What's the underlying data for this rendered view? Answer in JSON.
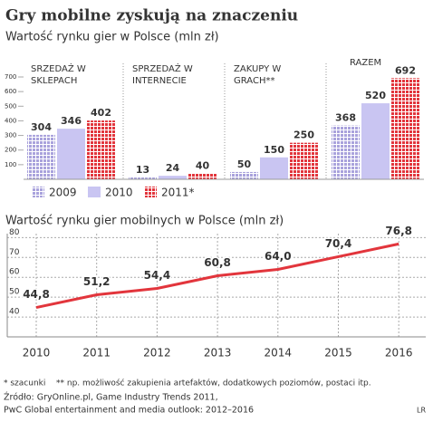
{
  "title": "Gry mobilne zyskują na znaczeniu",
  "chart_data": [
    {
      "type": "bar",
      "title": "Wartość rynku gier w Polsce (mln zł)",
      "categories": [
        "SRZEDAŻ W SKLEPACH",
        "SPRZEDAŻ W INTERNECIE",
        "ZAKUPY W GRACH**",
        "RAZEM"
      ],
      "series": [
        {
          "name": "2009",
          "color": "#a9a2dc",
          "pattern": "dots",
          "values": [
            304,
            13,
            50,
            368
          ]
        },
        {
          "name": "2010",
          "color": "#c9c5f2",
          "pattern": "solid",
          "values": [
            346,
            24,
            150,
            520
          ]
        },
        {
          "name": "2011*",
          "color": "#e2353c",
          "pattern": "dots",
          "values": [
            402,
            40,
            250,
            692
          ]
        }
      ],
      "ylim": [
        0,
        700
      ],
      "yticks": [
        100,
        200,
        300,
        400,
        500,
        600,
        700
      ]
    },
    {
      "type": "line",
      "title": "Wartość rynku gier mobilnych w Polsce (mln zł)",
      "categories": [
        "2010",
        "2011",
        "2012",
        "2013",
        "2014",
        "2015",
        "2016"
      ],
      "series": [
        {
          "color": "#e2353c",
          "values": [
            44.8,
            51.2,
            54.4,
            60.8,
            64.0,
            70.4,
            76.8
          ],
          "value_labels": [
            "44,8",
            "51,2",
            "54,4",
            "60,8",
            "64,0",
            "70,4",
            "76,8"
          ]
        }
      ],
      "ylim": [
        30,
        82
      ],
      "yticks": [
        40,
        50,
        60,
        70,
        80
      ],
      "grid": true
    }
  ],
  "notes": [
    "* szacunki",
    "** np. możliwość zakupienia artefaktów, dodatkowych poziomów, postaci itp."
  ],
  "source": [
    "Źródło: GryOnline.pl, Game Industry Trends 2011,",
    "PwC Global entertainment and media outlook: 2012–2016"
  ],
  "credit": "LR"
}
